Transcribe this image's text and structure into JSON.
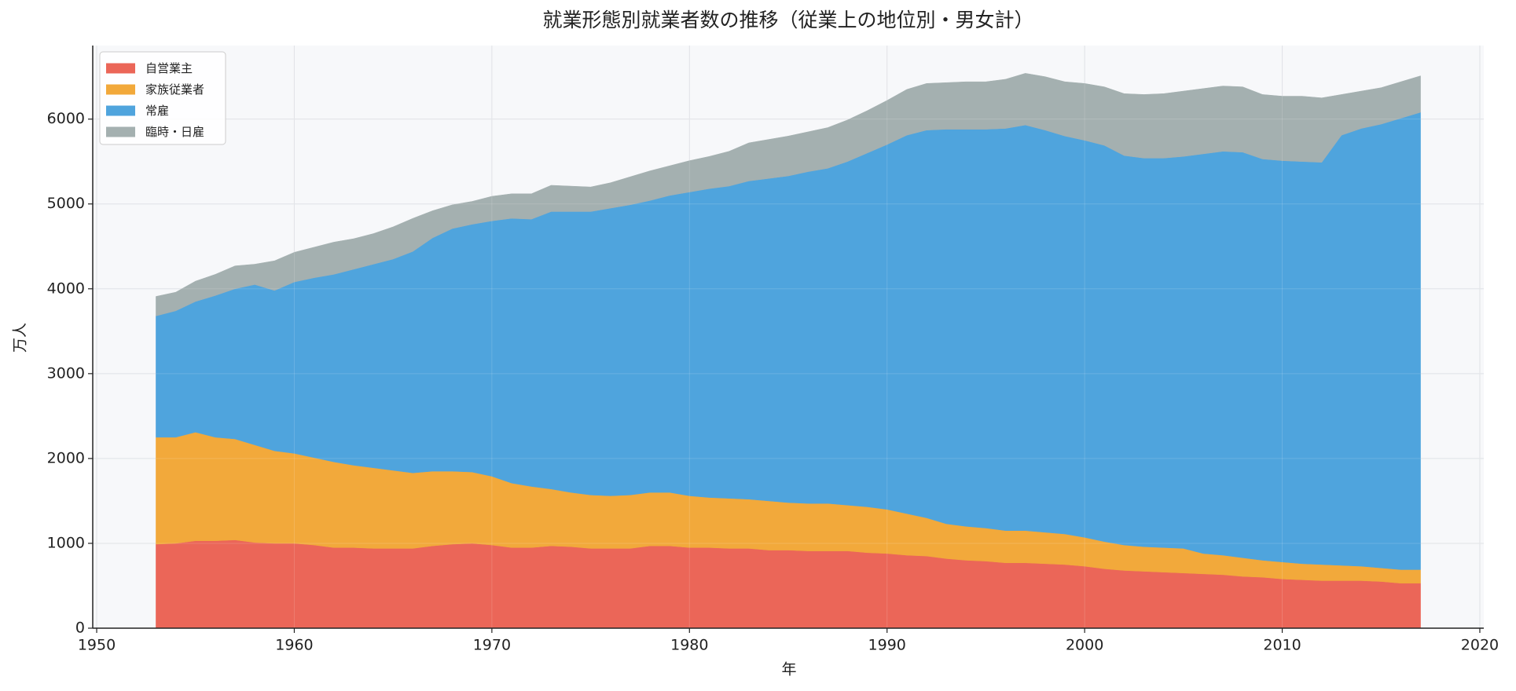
{
  "chart_data": {
    "type": "stacked_area",
    "title": "就業形態別就業者数の推移（従業上の地位別・男女計）",
    "x_label": "年",
    "y_label": "万人",
    "x": [
      1953,
      1954,
      1955,
      1956,
      1957,
      1958,
      1959,
      1960,
      1961,
      1962,
      1963,
      1964,
      1965,
      1966,
      1967,
      1968,
      1969,
      1970,
      1971,
      1972,
      1973,
      1974,
      1975,
      1976,
      1977,
      1978,
      1979,
      1980,
      1981,
      1982,
      1983,
      1984,
      1985,
      1986,
      1987,
      1988,
      1989,
      1990,
      1991,
      1992,
      1993,
      1994,
      1995,
      1996,
      1997,
      1998,
      1999,
      2000,
      2001,
      2002,
      2003,
      2004,
      2005,
      2006,
      2007,
      2008,
      2009,
      2010,
      2011,
      2012,
      2013,
      2014,
      2015,
      2016,
      2017
    ],
    "series": [
      {
        "name": "自営業主",
        "color": "#eb6658",
        "values": [
          990,
          1000,
          1030,
          1030,
          1040,
          1010,
          1000,
          1000,
          980,
          950,
          950,
          940,
          940,
          940,
          970,
          990,
          1000,
          980,
          950,
          950,
          970,
          960,
          940,
          940,
          940,
          970,
          970,
          950,
          950,
          940,
          940,
          920,
          920,
          910,
          910,
          910,
          890,
          880,
          860,
          850,
          820,
          800,
          790,
          770,
          770,
          760,
          750,
          730,
          700,
          680,
          670,
          660,
          650,
          640,
          630,
          610,
          600,
          580,
          570,
          560,
          560,
          560,
          550,
          530,
          530
        ]
      },
      {
        "name": "家族従業者",
        "color": "#f2a93b",
        "values": [
          1260,
          1250,
          1280,
          1220,
          1190,
          1150,
          1090,
          1060,
          1030,
          1010,
          970,
          950,
          920,
          890,
          880,
          860,
          840,
          810,
          760,
          720,
          670,
          640,
          630,
          620,
          630,
          630,
          630,
          610,
          590,
          590,
          580,
          580,
          560,
          560,
          560,
          540,
          540,
          520,
          490,
          450,
          410,
          400,
          390,
          380,
          380,
          370,
          360,
          340,
          320,
          300,
          290,
          290,
          290,
          240,
          230,
          220,
          200,
          200,
          190,
          190,
          180,
          170,
          160,
          160,
          160
        ]
      },
      {
        "name": "常雇",
        "color": "#4fa4dd",
        "values": [
          1430,
          1490,
          1540,
          1670,
          1770,
          1890,
          1890,
          2020,
          2120,
          2210,
          2310,
          2400,
          2490,
          2610,
          2750,
          2860,
          2920,
          3010,
          3120,
          3150,
          3270,
          3310,
          3340,
          3390,
          3420,
          3440,
          3500,
          3580,
          3640,
          3680,
          3750,
          3800,
          3850,
          3910,
          3950,
          4050,
          4170,
          4300,
          4460,
          4570,
          4650,
          4680,
          4700,
          4740,
          4780,
          4740,
          4690,
          4680,
          4670,
          4590,
          4580,
          4590,
          4620,
          4710,
          4760,
          4780,
          4730,
          4730,
          4740,
          4740,
          5070,
          5160,
          5230,
          5320,
          5390
        ]
      },
      {
        "name": "臨時・日雇",
        "color": "#a4b0b0",
        "values": [
          230,
          220,
          240,
          250,
          270,
          240,
          350,
          350,
          360,
          380,
          360,
          360,
          380,
          390,
          320,
          280,
          270,
          290,
          290,
          300,
          310,
          300,
          290,
          300,
          330,
          350,
          350,
          370,
          380,
          410,
          450,
          460,
          470,
          470,
          480,
          490,
          500,
          520,
          540,
          550,
          550,
          560,
          560,
          580,
          610,
          630,
          640,
          670,
          690,
          730,
          750,
          760,
          770,
          770,
          770,
          770,
          760,
          760,
          770,
          760,
          480,
          440,
          430,
          430,
          430
        ]
      }
    ],
    "xlim": [
      1949.8,
      2020.2
    ],
    "ylim": [
      0,
      6867
    ],
    "xticks": [
      1950,
      1960,
      1970,
      1980,
      1990,
      2000,
      2010,
      2020
    ],
    "yticks": [
      0,
      1000,
      2000,
      3000,
      4000,
      5000,
      6000
    ],
    "grid": true,
    "legend": "upper-left"
  }
}
